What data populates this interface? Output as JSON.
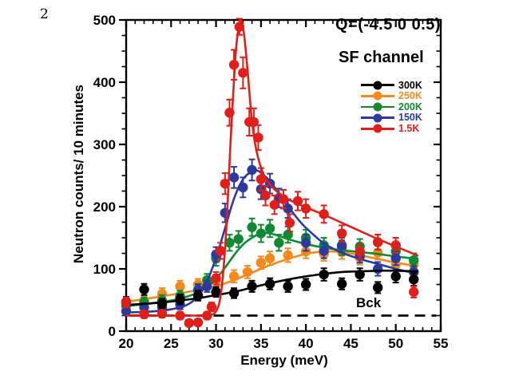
{
  "page": {
    "number": "2"
  },
  "annotations": {
    "q_label": "Q=(-4.5 0 0.5)",
    "channel_label": "SF channel",
    "background_label": "Bck"
  },
  "chart_data": {
    "type": "scatter",
    "title": "",
    "xlabel": "Energy (meV)",
    "ylabel": "Neutron counts/ 10 minutes",
    "xlim": [
      20,
      55
    ],
    "ylim": [
      0,
      500
    ],
    "x_major_ticks": [
      20,
      25,
      30,
      35,
      40,
      45,
      50,
      55
    ],
    "x_minor_step": 1,
    "y_major_ticks": [
      0,
      100,
      200,
      300,
      400,
      500
    ],
    "y_minor_step": 25,
    "grid": false,
    "legend_position": "upper-right",
    "background_line": {
      "label": "Bck",
      "value": 25,
      "style": "dashed",
      "color": "#000000",
      "x_start": 20.4,
      "x_end": 54.5
    },
    "series": [
      {
        "name": "250K",
        "color": "#f5891d",
        "points": [
          [
            20,
            44,
            8
          ],
          [
            22,
            49,
            8
          ],
          [
            24,
            60,
            9
          ],
          [
            26,
            72,
            9
          ],
          [
            28,
            75,
            9
          ],
          [
            30,
            81,
            10
          ],
          [
            32,
            88,
            10
          ],
          [
            33.5,
            95,
            10
          ],
          [
            35,
            110,
            10
          ],
          [
            36,
            117,
            11
          ],
          [
            38,
            122,
            11
          ],
          [
            40,
            128,
            11
          ],
          [
            42,
            124,
            11
          ],
          [
            44,
            127,
            11
          ],
          [
            46,
            118,
            11
          ],
          [
            48,
            126,
            11
          ],
          [
            50,
            107,
            10
          ],
          [
            52,
            107,
            10
          ]
        ],
        "fit": [
          [
            20,
            47
          ],
          [
            24,
            56
          ],
          [
            28,
            66
          ],
          [
            30,
            72
          ],
          [
            32,
            82
          ],
          [
            34,
            94
          ],
          [
            36,
            106
          ],
          [
            38,
            116
          ],
          [
            40,
            124
          ],
          [
            42,
            128
          ],
          [
            44,
            127
          ],
          [
            46,
            122
          ],
          [
            48,
            116
          ],
          [
            50,
            110
          ],
          [
            52.5,
            104
          ]
        ]
      },
      {
        "name": "200K",
        "color": "#0f8a32",
        "points": [
          [
            20,
            41,
            8
          ],
          [
            22,
            46,
            8
          ],
          [
            24,
            49,
            9
          ],
          [
            26,
            56,
            9
          ],
          [
            28,
            66,
            10
          ],
          [
            29,
            82,
            10
          ],
          [
            30,
            117,
            12
          ],
          [
            31.5,
            142,
            13
          ],
          [
            32.5,
            148,
            13
          ],
          [
            34,
            167,
            14
          ],
          [
            35,
            157,
            14
          ],
          [
            36,
            165,
            14
          ],
          [
            37,
            142,
            13
          ],
          [
            38,
            155,
            13
          ],
          [
            40,
            150,
            13
          ],
          [
            42,
            138,
            12
          ],
          [
            44,
            134,
            12
          ],
          [
            46,
            136,
            12
          ],
          [
            48,
            143,
            12
          ],
          [
            50,
            128,
            12
          ],
          [
            52,
            114,
            11
          ]
        ],
        "fit": [
          [
            20,
            40
          ],
          [
            24,
            47
          ],
          [
            26,
            52
          ],
          [
            28,
            62
          ],
          [
            29,
            71
          ],
          [
            30,
            84
          ],
          [
            31,
            102
          ],
          [
            32,
            122
          ],
          [
            33,
            139
          ],
          [
            34,
            150
          ],
          [
            35,
            157
          ],
          [
            36,
            157
          ],
          [
            37,
            153
          ],
          [
            38,
            148
          ],
          [
            40,
            140
          ],
          [
            42,
            134
          ],
          [
            44,
            130
          ],
          [
            46,
            127
          ],
          [
            48,
            124
          ],
          [
            50,
            120
          ],
          [
            52.5,
            116
          ]
        ]
      },
      {
        "name": "150K",
        "color": "#2c3a9e",
        "points": [
          [
            20,
            32,
            7
          ],
          [
            22,
            38,
            7
          ],
          [
            24,
            38,
            7
          ],
          [
            26,
            43,
            8
          ],
          [
            28,
            66,
            9
          ],
          [
            29,
            72,
            9
          ],
          [
            30,
            123,
            12
          ],
          [
            31,
            190,
            15
          ],
          [
            32,
            247,
            17
          ],
          [
            33,
            231,
            16
          ],
          [
            34,
            259,
            17
          ],
          [
            35,
            228,
            16
          ],
          [
            36,
            237,
            16
          ],
          [
            37,
            214,
            15
          ],
          [
            38,
            197,
            15
          ],
          [
            40,
            142,
            13
          ],
          [
            42,
            129,
            12
          ],
          [
            44,
            138,
            12
          ],
          [
            46,
            121,
            11
          ],
          [
            48,
            100,
            11
          ],
          [
            50,
            117,
            11
          ],
          [
            52,
            95,
            10
          ]
        ],
        "fit": [
          [
            20,
            30
          ],
          [
            22,
            31
          ],
          [
            24,
            33
          ],
          [
            26,
            38
          ],
          [
            27,
            44
          ],
          [
            28,
            56
          ],
          [
            29,
            80
          ],
          [
            30,
            118
          ],
          [
            31,
            165
          ],
          [
            32,
            213
          ],
          [
            33,
            244
          ],
          [
            34,
            257
          ],
          [
            34.6,
            258
          ],
          [
            35.2,
            252
          ],
          [
            36,
            241
          ],
          [
            37,
            221
          ],
          [
            38,
            201
          ],
          [
            39,
            182
          ],
          [
            40,
            166
          ],
          [
            42,
            141
          ],
          [
            44,
            126
          ],
          [
            46,
            116
          ],
          [
            48,
            108
          ],
          [
            50,
            100
          ],
          [
            52.5,
            92
          ]
        ]
      },
      {
        "name": "300K",
        "color": "#000000",
        "points": [
          [
            20,
            47,
            8
          ],
          [
            22,
            67,
            9
          ],
          [
            24,
            44,
            8
          ],
          [
            26,
            51,
            8
          ],
          [
            28,
            57,
            8
          ],
          [
            30,
            63,
            8
          ],
          [
            32,
            61,
            8
          ],
          [
            34,
            72,
            9
          ],
          [
            36,
            76,
            9
          ],
          [
            38,
            72,
            9
          ],
          [
            40,
            75,
            9
          ],
          [
            42,
            91,
            10
          ],
          [
            44,
            76,
            9
          ],
          [
            46,
            91,
            10
          ],
          [
            48,
            70,
            9
          ],
          [
            50,
            88,
            10
          ],
          [
            52,
            83,
            10
          ]
        ],
        "fit": [
          [
            20,
            42
          ],
          [
            24,
            46
          ],
          [
            28,
            53
          ],
          [
            30,
            58
          ],
          [
            32,
            63
          ],
          [
            34,
            70
          ],
          [
            36,
            77
          ],
          [
            38,
            83
          ],
          [
            40,
            88
          ],
          [
            42,
            92
          ],
          [
            44,
            95
          ],
          [
            46,
            96
          ],
          [
            48,
            97
          ],
          [
            50,
            97
          ],
          [
            52.5,
            96
          ]
        ]
      },
      {
        "name": "1.5K",
        "color": "#e01f1a",
        "points": [
          [
            20,
            46,
            8
          ],
          [
            22,
            27,
            6
          ],
          [
            24,
            28,
            6
          ],
          [
            26,
            25,
            6
          ],
          [
            27,
            13,
            5
          ],
          [
            28,
            14,
            5
          ],
          [
            29,
            25,
            6
          ],
          [
            29.5,
            39,
            7
          ],
          [
            30,
            85,
            10
          ],
          [
            30.5,
            129,
            13
          ],
          [
            31,
            237,
            17
          ],
          [
            31.5,
            351,
            21
          ],
          [
            32,
            428,
            24
          ],
          [
            32.6,
            489,
            13
          ],
          [
            33,
            415,
            25
          ],
          [
            33.7,
            336,
            22
          ],
          [
            34.2,
            336,
            22
          ],
          [
            34.7,
            311,
            20
          ],
          [
            35,
            244,
            18
          ],
          [
            35.5,
            218,
            16
          ],
          [
            36.5,
            203,
            15
          ],
          [
            37.5,
            212,
            15
          ],
          [
            38.2,
            174,
            14
          ],
          [
            39.1,
            209,
            15
          ],
          [
            40,
            197,
            15
          ],
          [
            42,
            188,
            14
          ],
          [
            44,
            157,
            13
          ],
          [
            46,
            128,
            12
          ],
          [
            48,
            143,
            12
          ],
          [
            50,
            138,
            12
          ],
          [
            52,
            63,
            9
          ]
        ],
        "fit": [
          [
            20,
            25
          ],
          [
            28,
            25
          ],
          [
            29.3,
            26
          ],
          [
            29.9,
            30
          ],
          [
            30.4,
            48
          ],
          [
            30.8,
            95
          ],
          [
            31.2,
            180
          ],
          [
            31.6,
            300
          ],
          [
            32,
            405
          ],
          [
            32.3,
            465
          ],
          [
            32.7,
            500
          ],
          [
            33.1,
            478
          ],
          [
            33.5,
            420
          ],
          [
            33.9,
            352
          ],
          [
            34.3,
            305
          ],
          [
            34.8,
            272
          ],
          [
            35.5,
            246
          ],
          [
            36.5,
            228
          ],
          [
            38,
            212
          ],
          [
            40,
            199
          ],
          [
            42,
            187
          ],
          [
            44,
            174
          ],
          [
            46,
            161
          ],
          [
            48,
            148
          ],
          [
            50,
            136
          ],
          [
            52.5,
            121
          ]
        ]
      }
    ],
    "legend_order": [
      "300K",
      "250K",
      "200K",
      "150K",
      "1.5K"
    ]
  }
}
